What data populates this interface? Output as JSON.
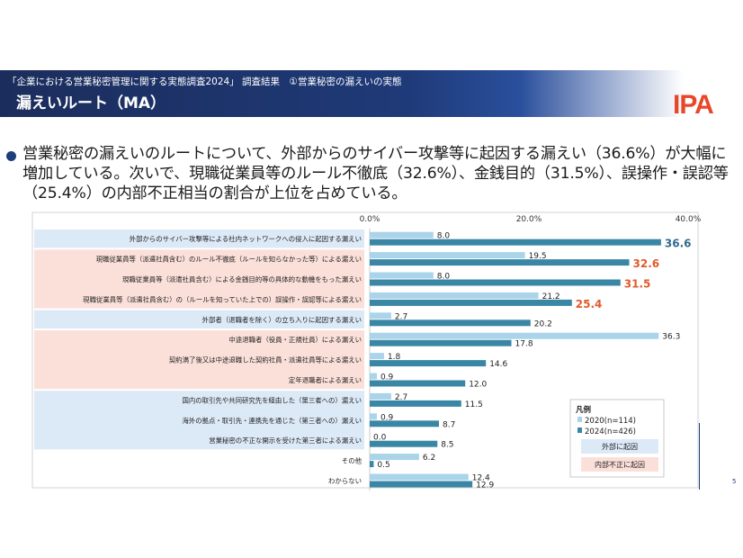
{
  "header": {
    "subtitle": "「企業における営業秘密管理に関する実態調査2024」 調査結果　①営業秘密の漏えいの実態",
    "title": "漏えいルート（MA）"
  },
  "logo": {
    "text": "IPA"
  },
  "summary": {
    "text": "営業秘密の漏えいのルートについて、外部からのサイバー攻撃等に起因する漏えい（36.6%）が大幅に増加している。次いで、現職従業員等のルール不徹底（32.6%）、金銭目的（31.5%）、誤操作・誤認等（25.4%）の内部不正相当の割合が上位を占めている。"
  },
  "slide_number": "5",
  "colors": {
    "bar_2020": "#a9d4ea",
    "bar_2024": "#3a87a5",
    "external_bg": "#dce9f7",
    "internal_bg": "#fbe0d9",
    "highlight_blue": "#2e6a8e",
    "highlight_red": "#e05a2b"
  },
  "chart_data": {
    "type": "bar",
    "orientation": "horizontal",
    "xlim": [
      0,
      40
    ],
    "xticks": [
      "0.0%",
      "20.0%",
      "40.0%"
    ],
    "categories": [
      "外部からのサイバー攻撃等による社内ネットワークへの侵入に起因する漏えい",
      "現職従業員等（派遣社員含む）のルール不徹底（ルールを知らなかった等）による漏えい",
      "現職従業員等（派遣社員含む）による金銭目的等の具体的な動機をもった漏えい",
      "現職従業員等（派遣社員含む）の（ルールを知っていた上での）誤操作・誤認等による漏えい",
      "外部者（退職者を除く）の立ち入りに起因する漏えい",
      "中途退職者（役員・正規社員）による漏えい",
      "契約満了後又は中途退職した契約社員・派遣社員等による漏えい",
      "定年退職者による漏えい",
      "国内の取引先や共同研究先を経由した（第三者への）漏えい",
      "海外の拠点・取引先・連携先を通じた（第三者への）漏えい",
      "営業秘密の不正な開示を受けた第三者による漏えい",
      "その他",
      "わからない"
    ],
    "series": [
      {
        "name": "2020(n=114)",
        "values": [
          8.0,
          19.5,
          8.0,
          21.2,
          2.7,
          36.3,
          1.8,
          0.9,
          2.7,
          0.9,
          0.0,
          6.2,
          12.4
        ]
      },
      {
        "name": "2024(n=426)",
        "values": [
          36.6,
          32.6,
          31.5,
          25.4,
          20.2,
          17.8,
          14.6,
          12.0,
          11.5,
          8.7,
          8.5,
          0.5,
          12.9
        ]
      }
    ],
    "value_labels_2020": [
      "8.0",
      "19.5",
      "8.0",
      "21.2",
      "2.7",
      "36.3",
      "1.8",
      "0.9",
      "2.7",
      "0.9",
      "0.0",
      "6.2",
      "12.4"
    ],
    "value_labels_2024": [
      "36.6",
      "32.6",
      "31.5",
      "25.4",
      "20.2",
      "17.8",
      "14.6",
      "12.0",
      "11.5",
      "8.7",
      "8.5",
      "0.5",
      "12.9"
    ],
    "highlight_2024": [
      "blue",
      "red",
      "red",
      "red",
      "",
      "",
      "",
      "",
      "",
      "",
      "",
      "",
      ""
    ],
    "groups": [
      {
        "type": "external",
        "rows": [
          0
        ]
      },
      {
        "type": "internal",
        "rows": [
          1,
          2,
          3
        ]
      },
      {
        "type": "external",
        "rows": [
          4
        ]
      },
      {
        "type": "internal",
        "rows": [
          5,
          6,
          7
        ]
      },
      {
        "type": "external",
        "rows": [
          8,
          9,
          10
        ]
      }
    ],
    "legend": {
      "title": "凡例",
      "item_2020": "2020(n=114)",
      "item_2024": "2024(n=426)",
      "external_label": "外部に起因",
      "internal_label": "内部不正に起因",
      "placement": "bottom-right"
    }
  }
}
